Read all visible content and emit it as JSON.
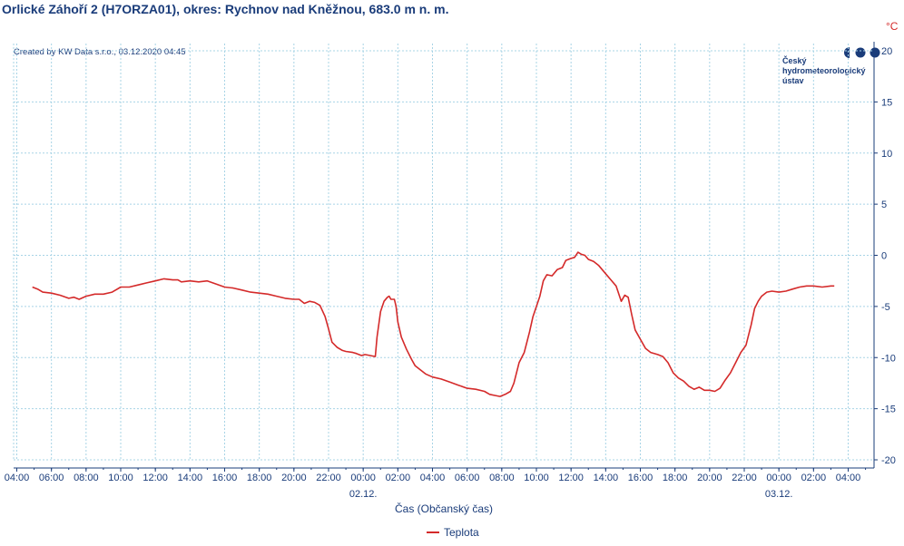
{
  "title": "Orlické Záhoří 2 (H7ORZA01), okres: Rychnov nad Kněžnou, 683.0 m n. m.",
  "created_by": "Created by KW Data s.r.o., 03.12.2020 04:45",
  "logo": {
    "line1": "Český",
    "line2": "hydrometeorologický",
    "line3": "ústav",
    "icon": "chmi-logo-dots"
  },
  "colors": {
    "series": "#d42a2a",
    "axis": "#1a3c7a",
    "grid": "#a8d4e6",
    "unit": "#d42a2a"
  },
  "chart_data": {
    "type": "line",
    "title": "Orlické Záhoří 2 (H7ORZA01), okres: Rychnov nad Kněžnou, 683.0 m n. m.",
    "xlabel": "Čas (Občanský čas)",
    "ylabel": "°C",
    "y_unit": "°C",
    "y_axis_side": "right",
    "ylim": [
      -20,
      20
    ],
    "y_ticks": [
      20,
      15,
      10,
      5,
      0,
      -5,
      -10,
      -15,
      -20
    ],
    "x_range_hours": [
      -20,
      32
    ],
    "x_ticks": [
      {
        "h": -20,
        "label": "04:00"
      },
      {
        "h": -18,
        "label": "06:00"
      },
      {
        "h": -16,
        "label": "08:00"
      },
      {
        "h": -14,
        "label": "10:00"
      },
      {
        "h": -12,
        "label": "12:00"
      },
      {
        "h": -10,
        "label": "14:00"
      },
      {
        "h": -8,
        "label": "16:00"
      },
      {
        "h": -6,
        "label": "18:00"
      },
      {
        "h": -4,
        "label": "20:00"
      },
      {
        "h": -2,
        "label": "22:00"
      },
      {
        "h": 0,
        "label": "00:00"
      },
      {
        "h": 2,
        "label": "02:00"
      },
      {
        "h": 4,
        "label": "04:00"
      },
      {
        "h": 6,
        "label": "06:00"
      },
      {
        "h": 8,
        "label": "08:00"
      },
      {
        "h": 10,
        "label": "10:00"
      },
      {
        "h": 12,
        "label": "12:00"
      },
      {
        "h": 14,
        "label": "14:00"
      },
      {
        "h": 16,
        "label": "16:00"
      },
      {
        "h": 18,
        "label": "18:00"
      },
      {
        "h": 20,
        "label": "20:00"
      },
      {
        "h": 22,
        "label": "22:00"
      },
      {
        "h": 24,
        "label": "00:00"
      },
      {
        "h": 26,
        "label": "02:00"
      },
      {
        "h": 28,
        "label": "04:00"
      }
    ],
    "date_labels": [
      {
        "h": 0,
        "label": "02.12."
      },
      {
        "h": 24,
        "label": "03.12."
      }
    ],
    "grid": true,
    "legend": "bottom-center",
    "series": [
      {
        "name": "Teplota",
        "color": "#d42a2a",
        "points": [
          [
            -19.1,
            -3.1
          ],
          [
            -18.8,
            -3.3
          ],
          [
            -18.5,
            -3.6
          ],
          [
            -18,
            -3.7
          ],
          [
            -17.5,
            -3.9
          ],
          [
            -17,
            -4.2
          ],
          [
            -16.7,
            -4.1
          ],
          [
            -16.4,
            -4.3
          ],
          [
            -16,
            -4.0
          ],
          [
            -15.5,
            -3.8
          ],
          [
            -15,
            -3.8
          ],
          [
            -14.5,
            -3.6
          ],
          [
            -14,
            -3.1
          ],
          [
            -13.5,
            -3.1
          ],
          [
            -13,
            -2.9
          ],
          [
            -12.5,
            -2.7
          ],
          [
            -12,
            -2.5
          ],
          [
            -11.5,
            -2.3
          ],
          [
            -11,
            -2.4
          ],
          [
            -10.7,
            -2.4
          ],
          [
            -10.5,
            -2.6
          ],
          [
            -10,
            -2.5
          ],
          [
            -9.5,
            -2.6
          ],
          [
            -9,
            -2.5
          ],
          [
            -8.5,
            -2.8
          ],
          [
            -8,
            -3.1
          ],
          [
            -7.5,
            -3.2
          ],
          [
            -7,
            -3.4
          ],
          [
            -6.5,
            -3.6
          ],
          [
            -6,
            -3.7
          ],
          [
            -5.5,
            -3.8
          ],
          [
            -5,
            -4.0
          ],
          [
            -4.5,
            -4.2
          ],
          [
            -4,
            -4.3
          ],
          [
            -3.7,
            -4.3
          ],
          [
            -3.4,
            -4.7
          ],
          [
            -3.1,
            -4.5
          ],
          [
            -2.8,
            -4.6
          ],
          [
            -2.5,
            -4.9
          ],
          [
            -2.2,
            -6.0
          ],
          [
            -2.0,
            -7.2
          ],
          [
            -1.8,
            -8.5
          ],
          [
            -1.5,
            -9.0
          ],
          [
            -1.2,
            -9.3
          ],
          [
            -1,
            -9.4
          ],
          [
            -0.6,
            -9.5
          ],
          [
            -0.4,
            -9.6
          ],
          [
            -0.1,
            -9.8
          ],
          [
            0.1,
            -9.7
          ],
          [
            0.4,
            -9.8
          ],
          [
            0.7,
            -9.9
          ],
          [
            0.8,
            -8.0
          ],
          [
            1.0,
            -5.5
          ],
          [
            1.2,
            -4.5
          ],
          [
            1.4,
            -4.1
          ],
          [
            1.5,
            -4.0
          ],
          [
            1.6,
            -4.3
          ],
          [
            1.8,
            -4.3
          ],
          [
            1.9,
            -5.0
          ],
          [
            2.0,
            -6.5
          ],
          [
            2.2,
            -8.0
          ],
          [
            2.5,
            -9.2
          ],
          [
            2.8,
            -10.2
          ],
          [
            3.0,
            -10.8
          ],
          [
            3.3,
            -11.2
          ],
          [
            3.6,
            -11.6
          ],
          [
            4,
            -11.9
          ],
          [
            4.5,
            -12.1
          ],
          [
            5,
            -12.4
          ],
          [
            5.5,
            -12.7
          ],
          [
            6,
            -13.0
          ],
          [
            6.5,
            -13.1
          ],
          [
            7,
            -13.3
          ],
          [
            7.3,
            -13.6
          ],
          [
            7.6,
            -13.7
          ],
          [
            7.9,
            -13.8
          ],
          [
            8.2,
            -13.6
          ],
          [
            8.5,
            -13.3
          ],
          [
            8.7,
            -12.5
          ],
          [
            9.0,
            -10.5
          ],
          [
            9.3,
            -9.5
          ],
          [
            9.6,
            -7.5
          ],
          [
            9.8,
            -6.0
          ],
          [
            10.2,
            -4.0
          ],
          [
            10.4,
            -2.5
          ],
          [
            10.6,
            -1.9
          ],
          [
            10.9,
            -2.0
          ],
          [
            11.2,
            -1.4
          ],
          [
            11.5,
            -1.2
          ],
          [
            11.7,
            -0.5
          ],
          [
            12.0,
            -0.3
          ],
          [
            12.2,
            -0.2
          ],
          [
            12.4,
            0.3
          ],
          [
            12.6,
            0.1
          ],
          [
            12.8,
            0.0
          ],
          [
            13.0,
            -0.4
          ],
          [
            13.3,
            -0.6
          ],
          [
            13.6,
            -1.0
          ],
          [
            14.0,
            -1.8
          ],
          [
            14.3,
            -2.4
          ],
          [
            14.6,
            -3.0
          ],
          [
            14.9,
            -4.5
          ],
          [
            15.1,
            -3.9
          ],
          [
            15.3,
            -4.1
          ],
          [
            15.5,
            -5.8
          ],
          [
            15.7,
            -7.3
          ],
          [
            16.0,
            -8.2
          ],
          [
            16.3,
            -9.1
          ],
          [
            16.6,
            -9.5
          ],
          [
            17.0,
            -9.7
          ],
          [
            17.3,
            -9.9
          ],
          [
            17.6,
            -10.5
          ],
          [
            17.9,
            -11.5
          ],
          [
            18.2,
            -12.0
          ],
          [
            18.5,
            -12.3
          ],
          [
            18.8,
            -12.8
          ],
          [
            19.1,
            -13.1
          ],
          [
            19.4,
            -12.9
          ],
          [
            19.7,
            -13.2
          ],
          [
            20.0,
            -13.2
          ],
          [
            20.3,
            -13.3
          ],
          [
            20.6,
            -13.0
          ],
          [
            20.9,
            -12.2
          ],
          [
            21.2,
            -11.5
          ],
          [
            21.5,
            -10.5
          ],
          [
            21.8,
            -9.5
          ],
          [
            22.1,
            -8.8
          ],
          [
            22.4,
            -6.8
          ],
          [
            22.6,
            -5.2
          ],
          [
            22.8,
            -4.5
          ],
          [
            23.0,
            -4.0
          ],
          [
            23.3,
            -3.6
          ],
          [
            23.6,
            -3.5
          ],
          [
            24,
            -3.6
          ],
          [
            24.4,
            -3.5
          ],
          [
            24.8,
            -3.3
          ],
          [
            25.2,
            -3.1
          ],
          [
            25.6,
            -3.0
          ],
          [
            26,
            -3.0
          ],
          [
            26.5,
            -3.1
          ],
          [
            27,
            -3.0
          ],
          [
            27.2,
            -3.0
          ]
        ]
      }
    ]
  },
  "legend_label": "Teplota"
}
